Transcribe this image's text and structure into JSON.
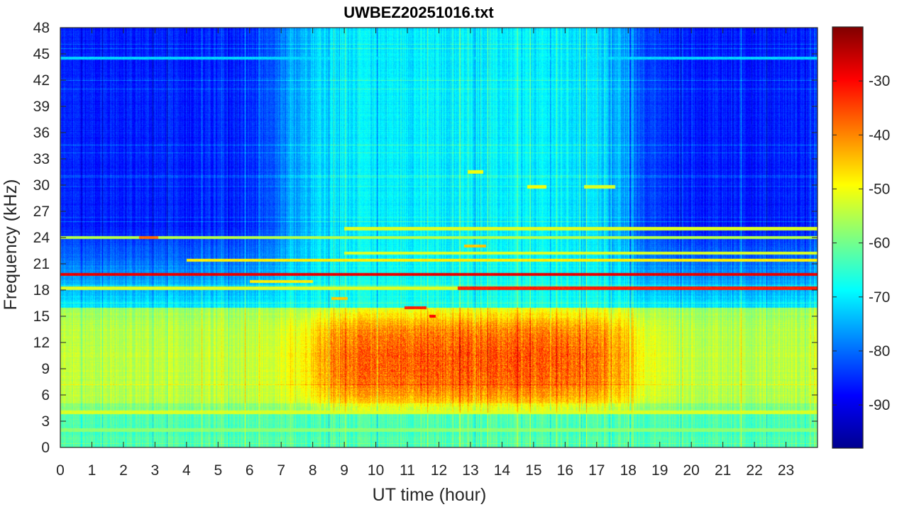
{
  "chart_data": {
    "type": "heatmap",
    "title": "UWBEZ20251016.txt",
    "xlabel": "UT time (hour)",
    "ylabel": "Frequency (kHz)",
    "xlim": [
      0,
      24
    ],
    "ylim": [
      0,
      48
    ],
    "x_ticks": [
      "0",
      "1",
      "2",
      "3",
      "4",
      "5",
      "6",
      "7",
      "8",
      "9",
      "10",
      "11",
      "12",
      "13",
      "14",
      "15",
      "16",
      "17",
      "18",
      "19",
      "20",
      "21",
      "22",
      "23"
    ],
    "y_ticks": [
      "0",
      "3",
      "6",
      "9",
      "12",
      "15",
      "18",
      "21",
      "24",
      "27",
      "30",
      "33",
      "36",
      "39",
      "42",
      "45",
      "48"
    ],
    "colorbar": {
      "colormap": "jet",
      "range_db": [
        -98,
        -20
      ],
      "ticks": [
        "-90",
        "-80",
        "-70",
        "-60",
        "-50",
        "-40",
        "-30"
      ]
    },
    "colormap_stops": [
      "#00008f",
      "#0000ff",
      "#00ffff",
      "#ffff00",
      "#ff0000",
      "#800000"
    ],
    "features": {
      "persistent_lines": [
        {
          "freq_khz": 19.8,
          "t_start": 0,
          "t_end": 24,
          "level_db": -28
        },
        {
          "freq_khz": 18.2,
          "t_start": 0,
          "t_end": 12.6,
          "level_db": -52
        },
        {
          "freq_khz": 18.2,
          "t_start": 12.6,
          "t_end": 24,
          "level_db": -32
        },
        {
          "freq_khz": 21.4,
          "t_start": 4,
          "t_end": 24,
          "level_db": -48
        },
        {
          "freq_khz": 22.2,
          "t_start": 9,
          "t_end": 24,
          "level_db": -52
        },
        {
          "freq_khz": 24.0,
          "t_start": 0,
          "t_end": 24,
          "level_db": -55
        },
        {
          "freq_khz": 25.0,
          "t_start": 9,
          "t_end": 24,
          "level_db": -52
        },
        {
          "freq_khz": 4.0,
          "t_start": 0,
          "t_end": 24,
          "level_db": -52
        },
        {
          "freq_khz": 2.0,
          "t_start": 0,
          "t_end": 24,
          "level_db": -58
        },
        {
          "freq_khz": 44.5,
          "t_start": 0,
          "t_end": 24,
          "level_db": -72
        }
      ],
      "short_bursts": [
        {
          "freq_khz": 16.0,
          "t_start": 10.9,
          "t_end": 11.6,
          "level_db": -32
        },
        {
          "freq_khz": 15.0,
          "t_start": 11.7,
          "t_end": 11.9,
          "level_db": -30
        },
        {
          "freq_khz": 17.0,
          "t_start": 8.6,
          "t_end": 9.1,
          "level_db": -45
        },
        {
          "freq_khz": 23.0,
          "t_start": 12.8,
          "t_end": 13.5,
          "level_db": -45
        },
        {
          "freq_khz": 24.0,
          "t_start": 2.5,
          "t_end": 3.1,
          "level_db": -38
        },
        {
          "freq_khz": 31.5,
          "t_start": 12.9,
          "t_end": 13.4,
          "level_db": -50
        },
        {
          "freq_khz": 29.8,
          "t_start": 14.8,
          "t_end": 15.4,
          "level_db": -50
        },
        {
          "freq_khz": 29.8,
          "t_start": 16.6,
          "t_end": 17.6,
          "level_db": -52
        },
        {
          "freq_khz": 19.0,
          "t_start": 6.0,
          "t_end": 8.0,
          "level_db": -48
        }
      ],
      "broadband_region": {
        "freq_min_khz": 5,
        "freq_max_khz": 15,
        "t_start": 8,
        "t_end": 18,
        "peak_db": -40
      },
      "daytime_background": {
        "t_start": 7.2,
        "t_end": 18,
        "level_db": -70
      },
      "night_background_db": -86
    }
  }
}
